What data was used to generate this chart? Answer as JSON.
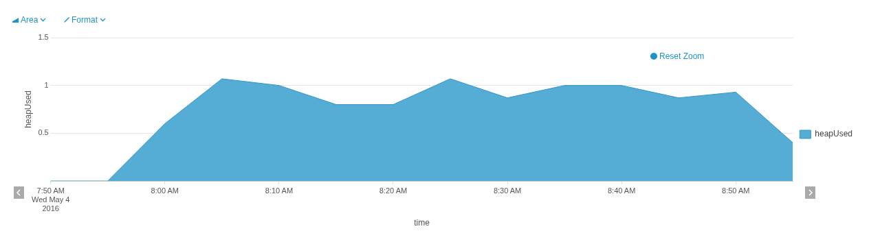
{
  "chart_data": {
    "type": "area",
    "xlabel": "time",
    "ylabel": "heapUsed",
    "x": [
      "2016-05-04T07:50",
      "2016-05-04T07:55",
      "2016-05-04T08:00",
      "2016-05-04T08:05",
      "2016-05-04T08:10",
      "2016-05-04T08:15",
      "2016-05-04T08:20",
      "2016-05-04T08:25",
      "2016-05-04T08:30",
      "2016-05-04T08:35",
      "2016-05-04T08:40",
      "2016-05-04T08:45",
      "2016-05-04T08:50",
      "2016-05-04T08:55"
    ],
    "series": [
      {
        "name": "heapUsed",
        "color": "#55acd4",
        "values": [
          0,
          0,
          0.6,
          1.07,
          1.0,
          0.8,
          0.8,
          1.07,
          0.87,
          1.0,
          1.0,
          0.87,
          0.93,
          0.4
        ]
      }
    ],
    "xlim": [
      "2016-05-04T07:50",
      "2016-05-04T08:55"
    ],
    "xticks": [
      {
        "value": "2016-05-04T07:50",
        "label": "7:50 AM\nWed May 4\n2016"
      },
      {
        "value": "2016-05-04T08:00",
        "label": "8:00 AM"
      },
      {
        "value": "2016-05-04T08:10",
        "label": "8:10 AM"
      },
      {
        "value": "2016-05-04T08:20",
        "label": "8:20 AM"
      },
      {
        "value": "2016-05-04T08:30",
        "label": "8:30 AM"
      },
      {
        "value": "2016-05-04T08:40",
        "label": "8:40 AM"
      },
      {
        "value": "2016-05-04T08:50",
        "label": "8:50 AM"
      }
    ],
    "ylim": [
      0,
      1.5
    ],
    "yticks": [
      0.5,
      1,
      1.5
    ],
    "grid": "y",
    "legend": "right",
    "marker": "none",
    "annotations": [
      "Area",
      "Format",
      "Reset Zoom"
    ]
  }
}
